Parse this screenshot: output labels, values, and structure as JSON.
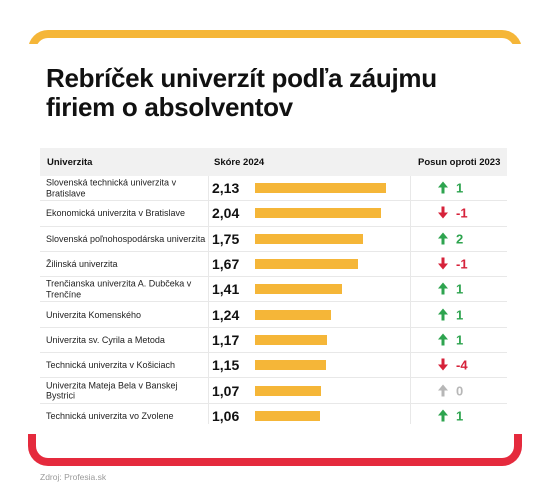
{
  "title": "Rebríček univerzít podľa záujmu firiem o absolventov",
  "colors": {
    "bar": "#f5b638",
    "top_accent": "#f5b638",
    "bottom_accent": "#e52a3d",
    "up": "#2ea44f",
    "down": "#d6223a",
    "unchanged": "#b7b7b7"
  },
  "chart_data": {
    "type": "table",
    "title": "Rebríček univerzít podľa záujmu firiem o absolventov",
    "columns": [
      "Univerzita",
      "Skóre 2024",
      "Posun oproti 2023"
    ],
    "bar_scale_max": 2.13,
    "rows": [
      {
        "name": "Slovenská technická univerzita v Bratislave",
        "score": 2.13,
        "score_label": "2,13",
        "change": 1,
        "change_label": "1",
        "direction": "up"
      },
      {
        "name": "Ekonomická univerzita v Bratislave",
        "score": 2.04,
        "score_label": "2,04",
        "change": -1,
        "change_label": "-1",
        "direction": "down"
      },
      {
        "name": "Slovenská poľnohospodárska univerzita",
        "score": 1.75,
        "score_label": "1,75",
        "change": 2,
        "change_label": "2",
        "direction": "up"
      },
      {
        "name": "Žilinská univerzita",
        "score": 1.67,
        "score_label": "1,67",
        "change": -1,
        "change_label": "-1",
        "direction": "down"
      },
      {
        "name": "Trenčianska univerzita A. Dubčeka v Trenčíne",
        "score": 1.41,
        "score_label": "1,41",
        "change": 1,
        "change_label": "1",
        "direction": "up"
      },
      {
        "name": "Univerzita Komenského",
        "score": 1.24,
        "score_label": "1,24",
        "change": 1,
        "change_label": "1",
        "direction": "up"
      },
      {
        "name": "Univerzita sv. Cyrila a Metoda",
        "score": 1.17,
        "score_label": "1,17",
        "change": 1,
        "change_label": "1",
        "direction": "up"
      },
      {
        "name": "Technická univerzita v Košiciach",
        "score": 1.15,
        "score_label": "1,15",
        "change": -4,
        "change_label": "-4",
        "direction": "down"
      },
      {
        "name": "Univerzita Mateja Bela v Banskej Bystrici",
        "score": 1.07,
        "score_label": "1,07",
        "change": 0,
        "change_label": "0",
        "direction": "same"
      },
      {
        "name": "Technická univerzita vo Zvolene",
        "score": 1.06,
        "score_label": "1,06",
        "change": 1,
        "change_label": "1",
        "direction": "up"
      }
    ]
  },
  "source": "Zdroj: Profesia.sk"
}
